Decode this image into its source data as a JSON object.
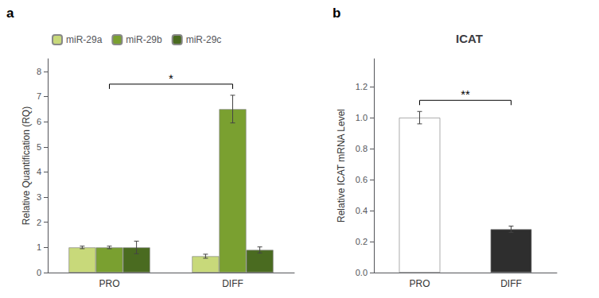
{
  "chart_data": [
    {
      "type": "bar",
      "categories": [
        "PRO",
        "DIFF"
      ],
      "series": [
        {
          "name": "miR-29a",
          "color": "#c8d97a",
          "values": [
            1.0,
            0.65
          ],
          "errors": [
            0.05,
            0.08
          ]
        },
        {
          "name": "miR-29b",
          "color": "#7aA030",
          "values": [
            1.0,
            6.5
          ],
          "errors": [
            0.05,
            0.55
          ]
        },
        {
          "name": "miR-29c",
          "color": "#4a6b20",
          "values": [
            1.0,
            0.9
          ],
          "errors": [
            0.25,
            0.12
          ]
        }
      ],
      "ylabel": "Relative Quantification (RQ)",
      "ylim": [
        0,
        8.5
      ],
      "yticks": [
        0,
        1,
        2,
        3,
        4,
        5,
        6,
        7,
        8
      ],
      "grid": false,
      "legend": "upper left",
      "annotations": [
        {
          "text": "a"
        },
        {
          "text": "*",
          "x": [
            "PRO",
            "DIFF"
          ]
        }
      ]
    },
    {
      "type": "bar",
      "title": "ICAT",
      "categories": [
        "PRO",
        "DIFF"
      ],
      "values": [
        1.0,
        0.28
      ],
      "errors": [
        0.04,
        0.02
      ],
      "colors": [
        "#ffffff",
        "#2e2e2e"
      ],
      "ylabel": "Relative ICAT mRNA Level",
      "ylim": [
        0,
        1.38
      ],
      "yticks": [
        {
          "value": 0,
          "label": "0.0"
        },
        0.2,
        0.4,
        0.6,
        0.8,
        {
          "value": 1.0,
          "label": "1.0"
        },
        1.2
      ],
      "grid": false,
      "annotations": [
        {
          "text": "b"
        },
        {
          "text": "**",
          "x": [
            "PRO",
            "DIFF"
          ]
        }
      ]
    }
  ]
}
